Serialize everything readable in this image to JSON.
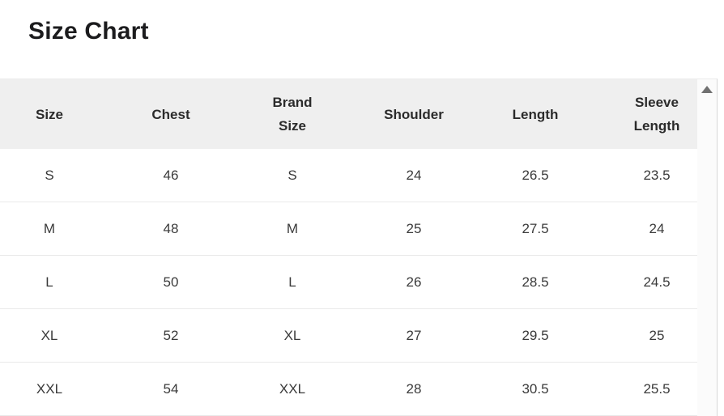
{
  "page_title": "Size Chart",
  "table": {
    "columns": [
      "Size",
      "Chest",
      "Brand Size",
      "Shoulder",
      "Length",
      "Sleeve Length"
    ],
    "rows": [
      [
        "S",
        "46",
        "S",
        "24",
        "26.5",
        "23.5"
      ],
      [
        "M",
        "48",
        "M",
        "25",
        "27.5",
        "24"
      ],
      [
        "L",
        "50",
        "L",
        "26",
        "28.5",
        "24.5"
      ],
      [
        "XL",
        "52",
        "XL",
        "27",
        "29.5",
        "25"
      ],
      [
        "XXL",
        "54",
        "XXL",
        "28",
        "30.5",
        "25.5"
      ]
    ]
  },
  "scrollbar": {
    "up_arrow_icon": "triangle-up"
  },
  "colors": {
    "title_text": "#1c1c1e",
    "header_bg": "#efefef",
    "header_text": "#2b2b2b",
    "cell_text": "#3a3a3a",
    "row_divider": "#e9e9e9",
    "scrollbar_track": "#fbfbfb",
    "scroll_arrow": "#717171"
  }
}
